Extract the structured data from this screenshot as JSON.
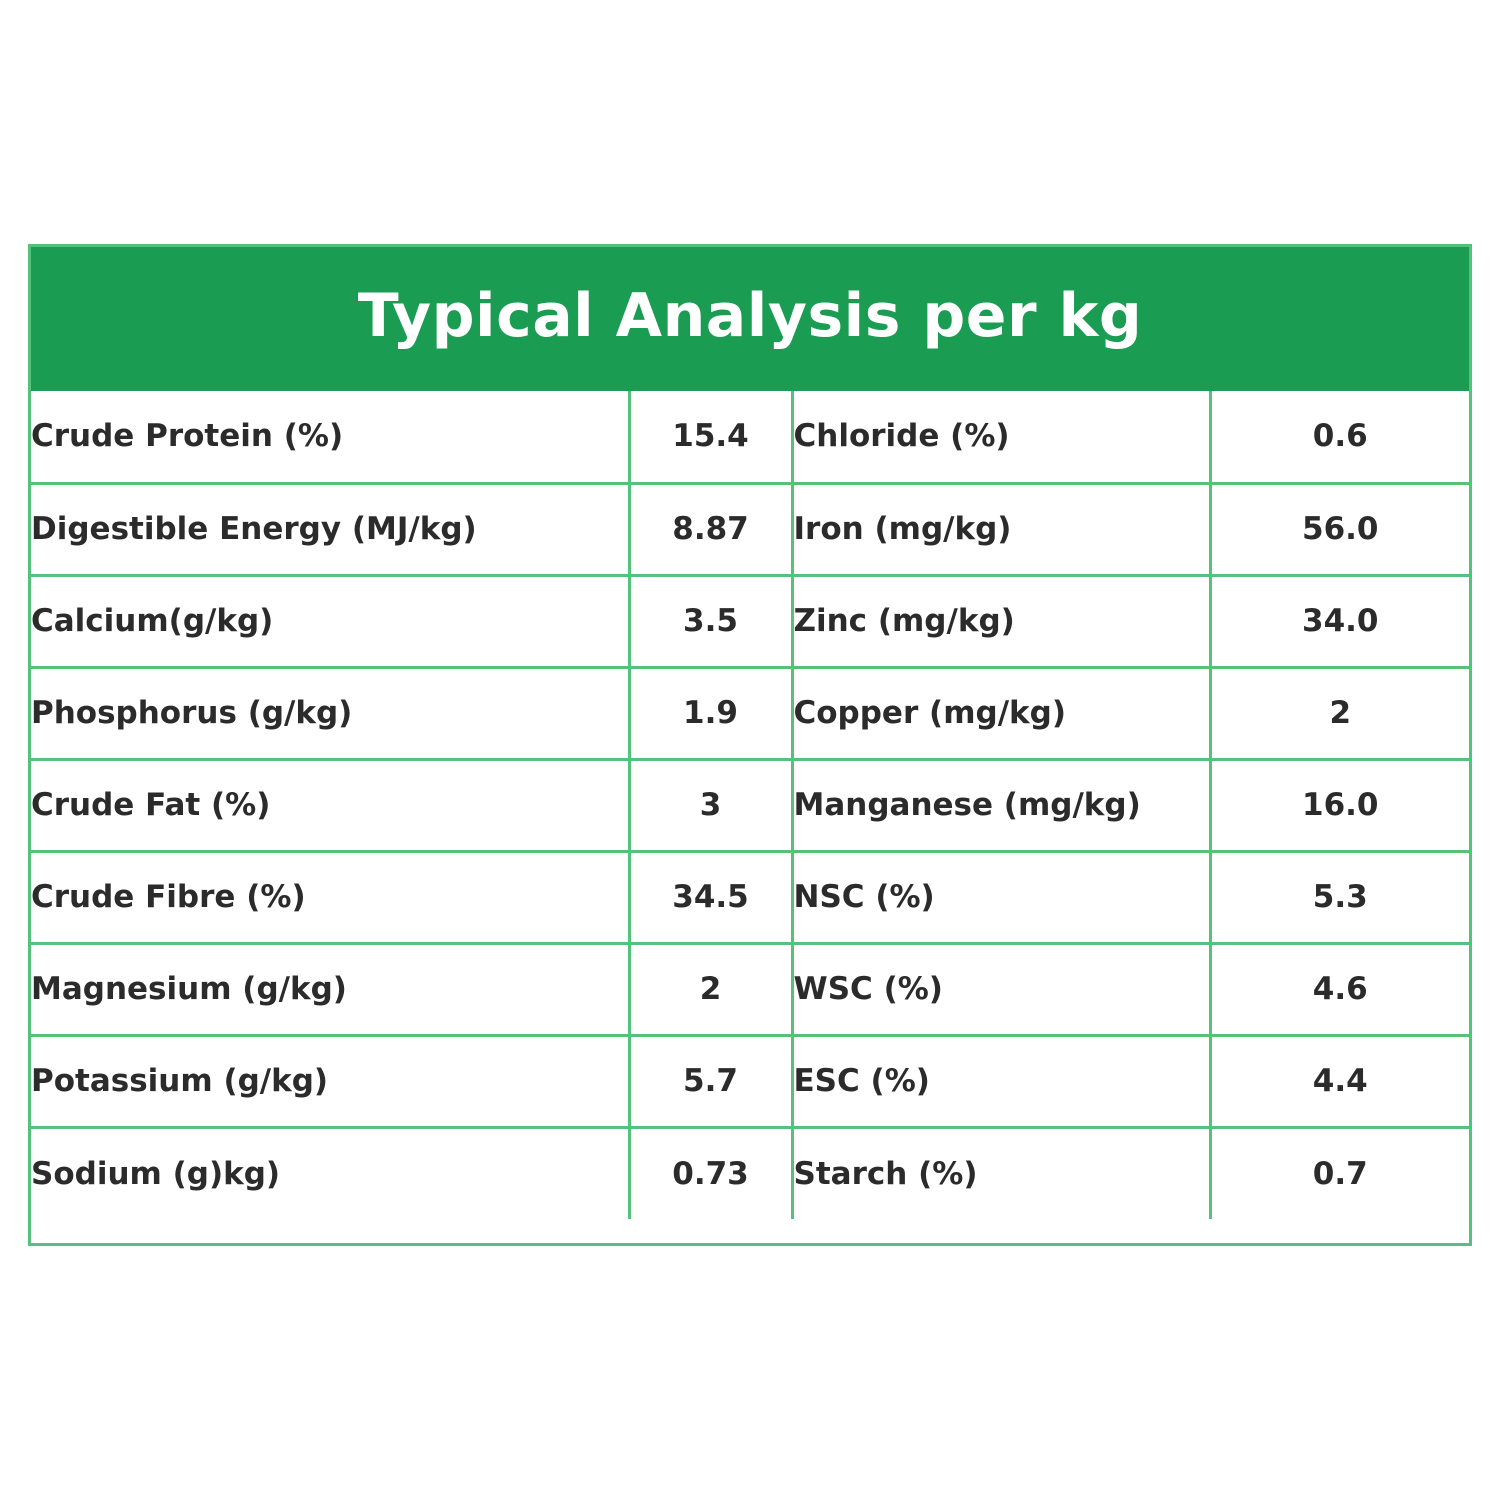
{
  "title": "Typical Analysis per kg",
  "rows": [
    {
      "left_label": "Crude Protein (%)",
      "left_value": "15.4",
      "right_label": "Chloride (%)",
      "right_value": "0.6"
    },
    {
      "left_label": "Digestible Energy (MJ/kg)",
      "left_value": "8.87",
      "right_label": "Iron (mg/kg)",
      "right_value": "56.0"
    },
    {
      "left_label": "Calcium(g/kg)",
      "left_value": "3.5",
      "right_label": "Zinc (mg/kg)",
      "right_value": "34.0"
    },
    {
      "left_label": "Phosphorus (g/kg)",
      "left_value": "1.9",
      "right_label": "Copper (mg/kg)",
      "right_value": "2"
    },
    {
      "left_label": "Crude Fat (%)",
      "left_value": "3",
      "right_label": "Manganese (mg/kg)",
      "right_value": "16.0"
    },
    {
      "left_label": "Crude Fibre (%)",
      "left_value": "34.5",
      "right_label": "NSC (%)",
      "right_value": "5.3"
    },
    {
      "left_label": "Magnesium (g/kg)",
      "left_value": "2",
      "right_label": "WSC (%)",
      "right_value": "4.6"
    },
    {
      "left_label": "Potassium (g/kg)",
      "left_value": "5.7",
      "right_label": "ESC (%)",
      "right_value": "4.4"
    },
    {
      "left_label": "Sodium (g)kg)",
      "left_value": "0.73",
      "right_label": "Starch (%)",
      "right_value": "0.7"
    }
  ],
  "colors": {
    "header_green": "#1a9c52",
    "border_green": "#54c27a",
    "text": "#2b2b2b"
  }
}
